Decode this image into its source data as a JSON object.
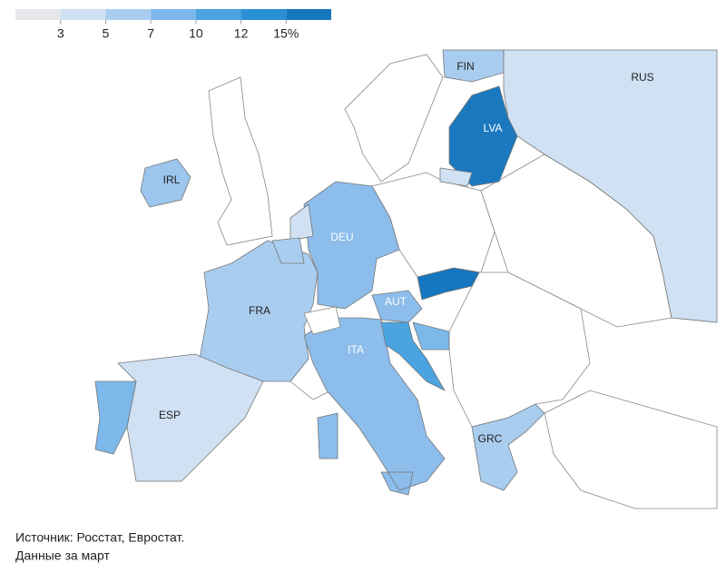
{
  "legend": {
    "colors": [
      "#e6e8eb",
      "#cfe1f3",
      "#a9cdef",
      "#7db8ea",
      "#4ba3e0",
      "#2a8fd6",
      "#1577bf"
    ],
    "ticks": [
      3,
      5,
      7,
      10,
      12,
      {
        "value": 15,
        "label": "15%"
      }
    ]
  },
  "regions": [
    {
      "label": "FIN",
      "color": "#a9cdef"
    },
    {
      "label": "RUS",
      "color": "#cfe1f3"
    },
    {
      "label": "LVA",
      "color": "#1a79be"
    },
    {
      "label": "IRL",
      "color": "#9cc6ee"
    },
    {
      "label": "DEU",
      "color": "#8cbdeb"
    },
    {
      "label": "FRA",
      "color": "#a9cdef"
    },
    {
      "label": "AUT",
      "color": "#8cbdeb"
    },
    {
      "label": "ITA",
      "color": "#8cbdeb"
    },
    {
      "label": "ESP",
      "color": "#cfe1f3"
    },
    {
      "label": "GRC",
      "color": "#a9cdef"
    }
  ],
  "source": [
    "Источник: Росстат, Евростат.",
    "Данные за март"
  ]
}
